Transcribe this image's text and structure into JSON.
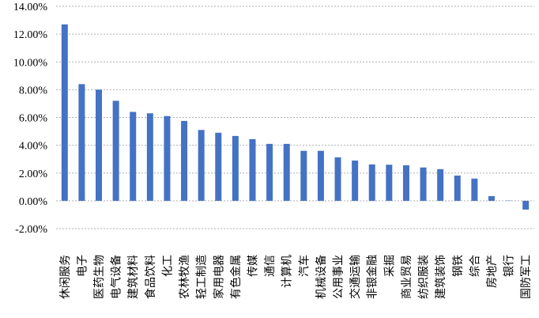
{
  "chart_data": {
    "type": "bar",
    "categories": [
      "休闲服务",
      "电子",
      "医药生物",
      "电气设备",
      "建筑材料",
      "食品饮料",
      "化工",
      "农林牧渔",
      "轻工制造",
      "家用电器",
      "有色金属",
      "传媒",
      "通信",
      "计算机",
      "汽车",
      "机械设备",
      "公用事业",
      "交通运输",
      "非银金融",
      "采掘",
      "商业贸易",
      "纺织服装",
      "建筑装饰",
      "钢铁",
      "综合",
      "房地产",
      "银行",
      "国防军工"
    ],
    "values": [
      12.7,
      8.4,
      8.0,
      7.2,
      6.4,
      6.3,
      6.1,
      5.75,
      5.1,
      4.9,
      4.67,
      4.44,
      4.1,
      4.1,
      3.6,
      3.6,
      3.13,
      2.9,
      2.62,
      2.6,
      2.56,
      2.4,
      2.28,
      1.82,
      1.6,
      0.34,
      0.02,
      -0.63
    ],
    "color": "#4472c4",
    "ylim": [
      -2,
      14
    ],
    "yticks": [
      {
        "value": -2,
        "label": "-2.00%"
      },
      {
        "value": 0,
        "label": "0.00%"
      },
      {
        "value": 2,
        "label": "2.00%"
      },
      {
        "value": 4,
        "label": "4.00%"
      },
      {
        "value": 6,
        "label": "6.00%"
      },
      {
        "value": 8,
        "label": "8.00%"
      },
      {
        "value": 10,
        "label": "10.00%"
      },
      {
        "value": 12,
        "label": "12.00%"
      },
      {
        "value": 14,
        "label": "14.00%"
      }
    ],
    "grid": true
  }
}
